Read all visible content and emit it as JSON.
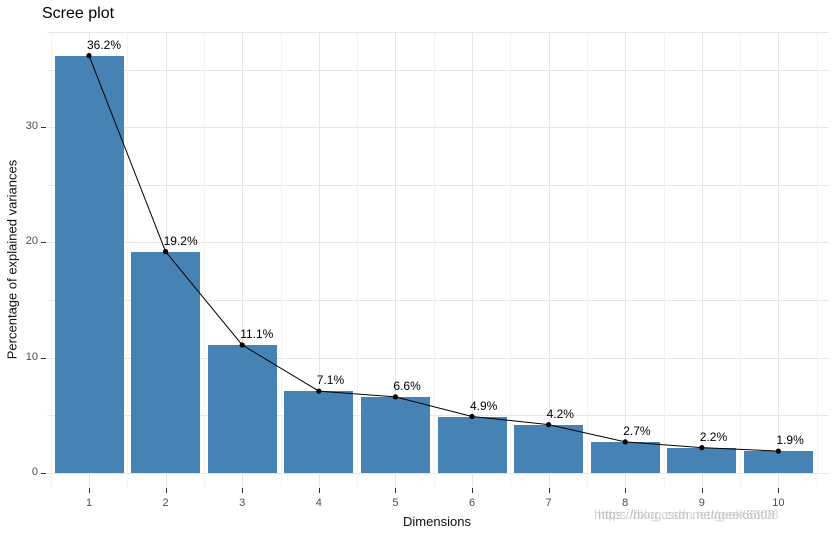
{
  "chart_data": {
    "type": "bar",
    "overlay": "line-with-points",
    "title": "Scree plot",
    "xlabel": "Dimensions",
    "ylabel": "Percentage of explained variances",
    "categories": [
      "1",
      "2",
      "3",
      "4",
      "5",
      "6",
      "7",
      "8",
      "9",
      "10"
    ],
    "values": [
      36.2,
      19.2,
      11.1,
      7.1,
      6.6,
      4.9,
      4.2,
      2.7,
      2.2,
      1.9
    ],
    "point_labels": [
      "36.2%",
      "19.2%",
      "11.1%",
      "7.1%",
      "6.6%",
      "4.9%",
      "4.2%",
      "2.7%",
      "2.2%",
      "1.9%"
    ],
    "y_ticks": [
      0,
      10,
      20,
      30
    ],
    "ylim": [
      0,
      38
    ],
    "grid": true,
    "legend": "none",
    "bar_color": "#4682B4",
    "line_color": "#000000",
    "grid_major_color": "#e6e6e6",
    "grid_minor_color": "#f3f3f3",
    "axis_text_color": "#4d4d4d"
  },
  "watermark": {
    "text": "https://blog.csdn.net/geek66t08"
  }
}
